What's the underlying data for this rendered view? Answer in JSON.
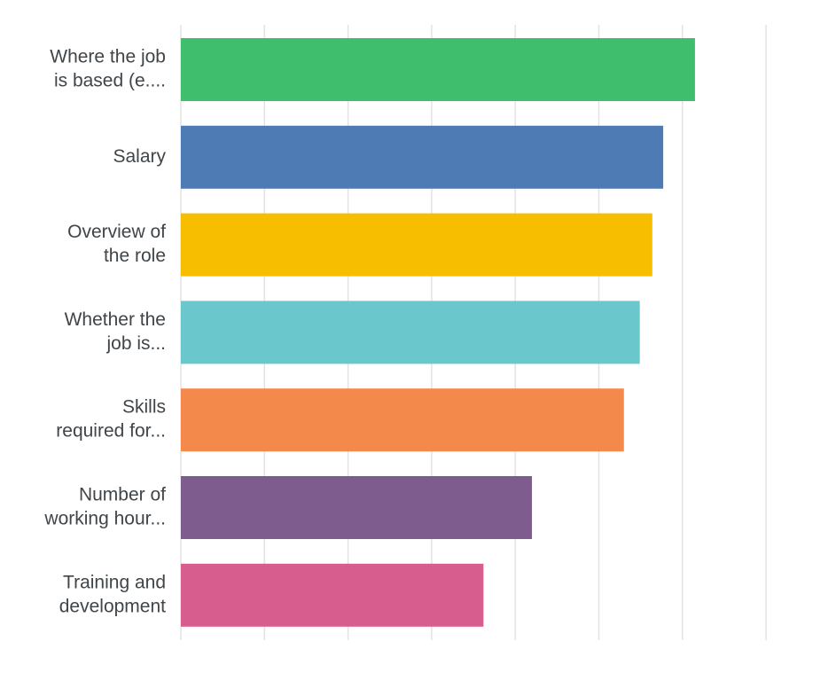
{
  "chart_data": {
    "type": "bar",
    "orientation": "horizontal",
    "title": "",
    "xlabel": "",
    "ylabel": "",
    "categories": [
      [
        "Where the job",
        "is based (e...."
      ],
      [
        "Salary"
      ],
      [
        "Overview of",
        "the role"
      ],
      [
        "Whether the",
        "job is..."
      ],
      [
        "Skills",
        "required for..."
      ],
      [
        "Number of",
        "working hour..."
      ],
      [
        "Training and",
        "development"
      ]
    ],
    "values": [
      61.5,
      57.7,
      56.4,
      54.9,
      53.0,
      42.0,
      36.2
    ],
    "colors": [
      "#3fbf6e",
      "#4f7bb5",
      "#f7be00",
      "#6ac8cc",
      "#f4894c",
      "#7e5d8e",
      "#d65d8e"
    ],
    "xlim": [
      0,
      70
    ],
    "x_tick_step": 10,
    "tick_labels_shown": false,
    "grid": true,
    "legend": "none"
  }
}
